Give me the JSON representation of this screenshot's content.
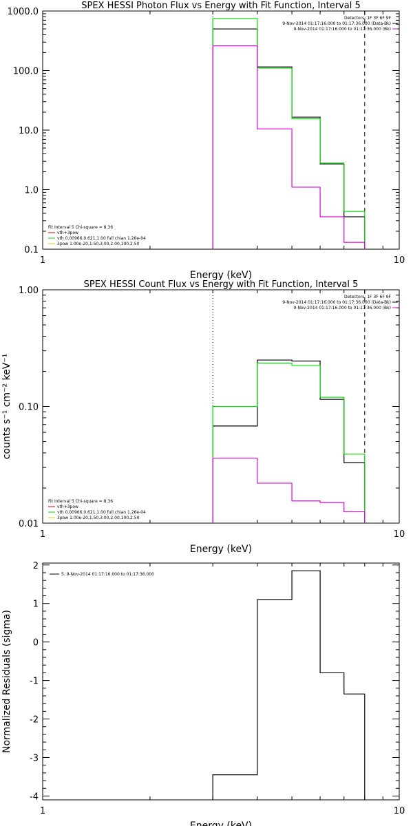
{
  "chart_data": [
    {
      "type": "line",
      "title": "SPEX HESSI Photon Flux vs Energy with Fit Function, Interval 5",
      "xlabel": "Energy (keV)",
      "ylabel": "",
      "xscale": "log",
      "yscale": "log",
      "xlim": [
        1,
        10
      ],
      "ylim": [
        0.1,
        1000
      ],
      "x_ticks": [
        "1",
        "10"
      ],
      "y_ticks": [
        "0.1",
        "1.0",
        "10.0",
        "100.0",
        "1000.0"
      ],
      "bin_edges": [
        3.0,
        4.0,
        5.0,
        6.0,
        7.0,
        8.0
      ],
      "vlines": [
        {
          "x": 3.0,
          "style": "dotted"
        },
        {
          "x": 8.0,
          "style": "dashed"
        }
      ],
      "series": [
        {
          "name": "",
          "color": "#000000",
          "values": [
            500,
            115,
            16.5,
            2.7,
            0.35
          ]
        },
        {
          "name": "vth+3pow",
          "color": "#00dd00",
          "values": [
            750,
            110,
            15.5,
            2.8,
            0.43
          ]
        },
        {
          "name": "",
          "color": "#dd00dd",
          "values": [
            260,
            10.5,
            1.1,
            0.35,
            0.13
          ]
        }
      ],
      "legend_right": [
        {
          "text": "Detectors: 1F 3F 6F 9F",
          "color": ""
        },
        {
          "text": "9-Nov-2014 01:17:16.000 to 01:17:36.000 (Data-Bk)",
          "color": "#000000"
        },
        {
          "text": "9-Nov-2014 01:17:16.000 to 01:17:36.000 (Bk)",
          "color": "#dd00dd"
        }
      ],
      "legend_left": [
        {
          "text": "Fit Interval 5   Chi-square = 8.36",
          "color": ""
        },
        {
          "text": "vth+3pow",
          "color": "#dd0000"
        },
        {
          "text": "vth 0.00966,0.621,1.00  full chian 1.26e-04",
          "color": "#00dd00"
        },
        {
          "text": "3pow 1.00e-20,1.50,3.00,2.00,100,2.50",
          "color": "#dddd00"
        }
      ]
    },
    {
      "type": "line",
      "title": "SPEX HESSI Count Flux vs Energy with Fit Function, Interval 5",
      "xlabel": "Energy (keV)",
      "ylabel": "counts s⁻¹ cm⁻² keV⁻¹",
      "xscale": "log",
      "yscale": "log",
      "xlim": [
        1,
        10
      ],
      "ylim": [
        0.01,
        1.0
      ],
      "x_ticks": [
        "1",
        "10"
      ],
      "y_ticks": [
        "0.01",
        "0.10",
        "1.00"
      ],
      "bin_edges": [
        3.0,
        4.0,
        5.0,
        6.0,
        7.0,
        8.0
      ],
      "vlines": [
        {
          "x": 3.0,
          "style": "dotted"
        },
        {
          "x": 8.0,
          "style": "dashed"
        }
      ],
      "series": [
        {
          "name": "",
          "color": "#000000",
          "values": [
            0.068,
            0.25,
            0.245,
            0.115,
            0.033
          ]
        },
        {
          "name": "vth+3pow",
          "color": "#00dd00",
          "values": [
            0.1,
            0.235,
            0.225,
            0.12,
            0.039
          ]
        },
        {
          "name": "",
          "color": "#dd00dd",
          "values": [
            0.036,
            0.022,
            0.0155,
            0.015,
            0.0125
          ]
        }
      ],
      "legend_right": [
        {
          "text": "Detectors: 1F 3F 6F 9F",
          "color": ""
        },
        {
          "text": "9-Nov-2014 01:17:16.000 to 01:17:36.000 (Data-Bk)",
          "color": "#000000"
        },
        {
          "text": "9-Nov-2014 01:17:16.000 to 01:17:36.000 (Bk)",
          "color": "#dd00dd"
        }
      ],
      "legend_left": [
        {
          "text": "Fit Interval 5   Chi-square = 8.36",
          "color": ""
        },
        {
          "text": "vth+3pow",
          "color": "#dd0000"
        },
        {
          "text": "vth 0.00966,0.621,1.00  full chian 1.26e-04",
          "color": "#00dd00"
        },
        {
          "text": "3pow 1.00e-20,1.50,3.00,2.00,100,2.50",
          "color": "#dddd00"
        }
      ]
    },
    {
      "type": "line",
      "title": "",
      "xlabel": "Energy (keV)",
      "ylabel": "Normalized Residuals (sigma)",
      "xscale": "log",
      "yscale": "linear",
      "xlim": [
        1,
        10
      ],
      "ylim": [
        -4.1,
        2.05
      ],
      "x_ticks": [
        "1",
        "10"
      ],
      "y_ticks": [
        "-4",
        "-3",
        "-2",
        "-1",
        "0",
        "1",
        "2"
      ],
      "bin_edges": [
        3.0,
        4.0,
        5.0,
        6.0,
        7.0,
        8.0
      ],
      "vlines": [],
      "series": [
        {
          "name": "5.  9-Nov-2014 01:17:16.000 to 01:17:36.000",
          "color": "#000000",
          "values": [
            -3.45,
            1.1,
            1.85,
            -0.8,
            -1.35
          ]
        }
      ],
      "legend_right": [],
      "legend_left": []
    }
  ]
}
